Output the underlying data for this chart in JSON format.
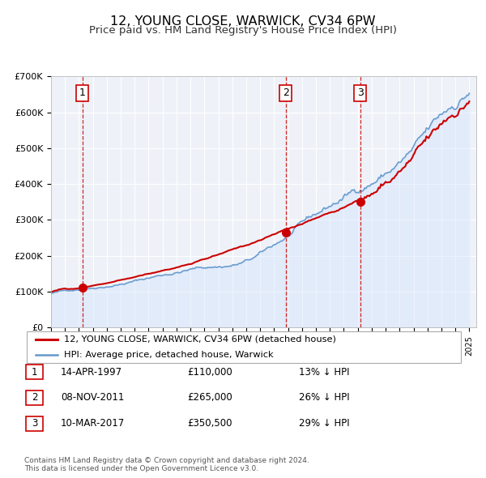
{
  "title": "12, YOUNG CLOSE, WARWICK, CV34 6PW",
  "subtitle": "Price paid vs. HM Land Registry's House Price Index (HPI)",
  "plot_background": "#eef2f8",
  "transactions": [
    {
      "label": "1",
      "date": "1997-04-14",
      "price": 110000
    },
    {
      "label": "2",
      "date": "2011-11-08",
      "price": 265000
    },
    {
      "label": "3",
      "date": "2017-03-10",
      "price": 350500
    }
  ],
  "table_rows": [
    [
      "1",
      "14-APR-1997",
      "£110,000",
      "13% ↓ HPI"
    ],
    [
      "2",
      "08-NOV-2011",
      "£265,000",
      "26% ↓ HPI"
    ],
    [
      "3",
      "10-MAR-2017",
      "£350,500",
      "29% ↓ HPI"
    ]
  ],
  "legend_entries": [
    "12, YOUNG CLOSE, WARWICK, CV34 6PW (detached house)",
    "HPI: Average price, detached house, Warwick"
  ],
  "price_color": "#cc0000",
  "hpi_color": "#6699cc",
  "hpi_fill_color": "#cce0ff",
  "footer": "Contains HM Land Registry data © Crown copyright and database right 2024.\nThis data is licensed under the Open Government Licence v3.0.",
  "ylim": [
    0,
    700000
  ],
  "yticks": [
    0,
    100000,
    200000,
    300000,
    400000,
    500000,
    600000,
    700000
  ],
  "ytick_labels": [
    "£0",
    "£100K",
    "£200K",
    "£300K",
    "£400K",
    "£500K",
    "£600K",
    "£700K"
  ],
  "xlim_start": 1995.0,
  "xlim_end": 2025.5,
  "vline_color": "#cc0000"
}
